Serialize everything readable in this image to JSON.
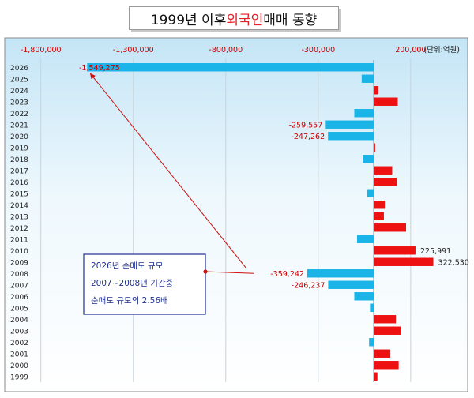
{
  "title": {
    "prefix": "1999년 이후 ",
    "accent": "외국인",
    "suffix": " 매매 동향",
    "accent_color": "#e8202a"
  },
  "chart_data": {
    "type": "bar",
    "orientation": "horizontal",
    "title": "1999년 이후 외국인 매매 동향",
    "unit_label": "(단위:억원)",
    "categories": [
      "2026",
      "2025",
      "2024",
      "2023",
      "2022",
      "2021",
      "2020",
      "2019",
      "2018",
      "2017",
      "2016",
      "2015",
      "2014",
      "2013",
      "2012",
      "2011",
      "2010",
      "2009",
      "2008",
      "2007",
      "2006",
      "2005",
      "2004",
      "2003",
      "2002",
      "2001",
      "2000",
      "1999"
    ],
    "values": [
      -1549275,
      -65000,
      25000,
      130000,
      -105000,
      -259557,
      -247262,
      8000,
      -60000,
      100000,
      125000,
      -35000,
      60000,
      55000,
      175000,
      -90000,
      225991,
      322530,
      -359242,
      -246237,
      -105000,
      -20000,
      120000,
      145000,
      -25000,
      90000,
      135000,
      20000
    ],
    "data_labels": {
      "2026": "-1,549,275",
      "2021": "-259,557",
      "2020": "-247,262",
      "2010": "225,991",
      "2009": "322,530",
      "2008": "-359,242",
      "2007": "-246,237"
    },
    "x_ticks": [
      -1800000,
      -1300000,
      -800000,
      -300000,
      200000
    ],
    "x_tick_labels": [
      "-1,800,000",
      "-1,300,000",
      "-800,000",
      "-300,000",
      "200,000"
    ],
    "xlim": [
      -1850000,
      380000
    ],
    "positive_color": "#ee1111",
    "negative_color": "#1ab4e8",
    "grid": "vertical",
    "axis_label_color": "#cc0000",
    "annotation": {
      "lines": [
        "2026년 순매도 규모",
        "2007~2008년 기간중",
        "순매도 규모의 2.56배"
      ],
      "color": "#1f2f8f",
      "arrow_color": "#cc1111"
    }
  }
}
